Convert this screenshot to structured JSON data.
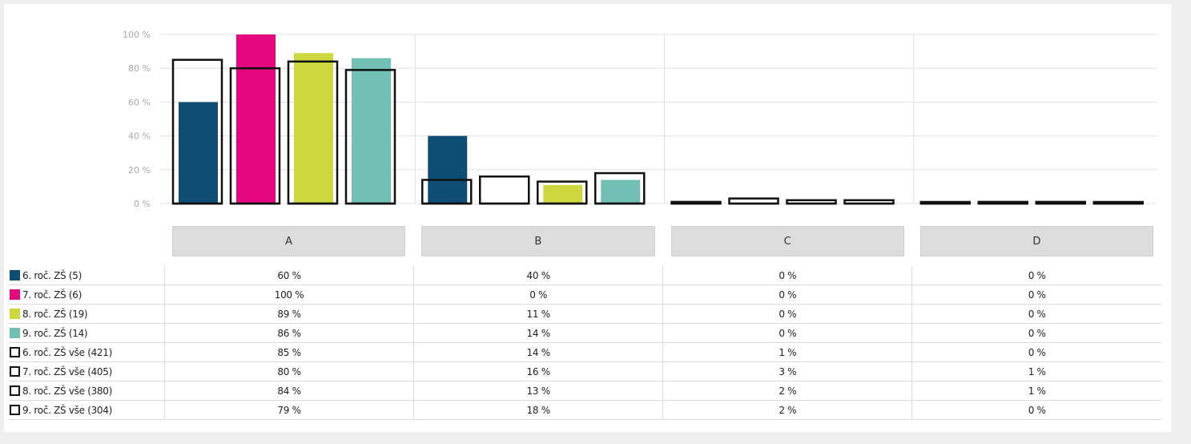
{
  "chart_data": {
    "type": "bar",
    "categories": [
      "A",
      "B",
      "C",
      "D"
    ],
    "ylim": [
      0,
      100
    ],
    "yticks": [
      "0 %",
      "20 %",
      "40 %",
      "60 %",
      "80 %",
      "100 %"
    ],
    "grid": true,
    "legend_position": "left-table",
    "series": [
      {
        "name": "6. roč. ZŠ (5)",
        "style": "filled",
        "color": "#0e4d74",
        "values": [
          60,
          40,
          0,
          0
        ],
        "labels": [
          "60 %",
          "40 %",
          "0 %",
          "0 %"
        ]
      },
      {
        "name": "7. roč. ZŠ (6)",
        "style": "filled",
        "color": "#e5077e",
        "values": [
          100,
          0,
          0,
          0
        ],
        "labels": [
          "100 %",
          "0 %",
          "0 %",
          "0 %"
        ]
      },
      {
        "name": "8. roč. ZŠ (19)",
        "style": "filled",
        "color": "#cdd83e",
        "values": [
          89,
          11,
          0,
          0
        ],
        "labels": [
          "89 %",
          "11 %",
          "0 %",
          "0 %"
        ]
      },
      {
        "name": "9. roč. ZŠ (14)",
        "style": "filled",
        "color": "#72c0b4",
        "values": [
          86,
          14,
          0,
          0
        ],
        "labels": [
          "86 %",
          "14 %",
          "0 %",
          "0 %"
        ]
      },
      {
        "name": "6. roč. ZŠ vše (421)",
        "style": "outline",
        "color": "#111111",
        "values": [
          85,
          14,
          1,
          0
        ],
        "labels": [
          "85 %",
          "14 %",
          "1 %",
          "0 %"
        ]
      },
      {
        "name": "7. roč. ZŠ vše (405)",
        "style": "outline",
        "color": "#111111",
        "values": [
          80,
          16,
          3,
          1
        ],
        "labels": [
          "80 %",
          "16 %",
          "3 %",
          "1 %"
        ]
      },
      {
        "name": "8. roč. ZŠ vše (380)",
        "style": "outline",
        "color": "#111111",
        "values": [
          84,
          13,
          2,
          1
        ],
        "labels": [
          "84 %",
          "13 %",
          "2 %",
          "1 %"
        ]
      },
      {
        "name": "9. roč. ZŠ vše (304)",
        "style": "outline",
        "color": "#111111",
        "values": [
          79,
          18,
          2,
          0
        ],
        "labels": [
          "79 %",
          "18 %",
          "2 %",
          "0 %"
        ]
      }
    ]
  }
}
